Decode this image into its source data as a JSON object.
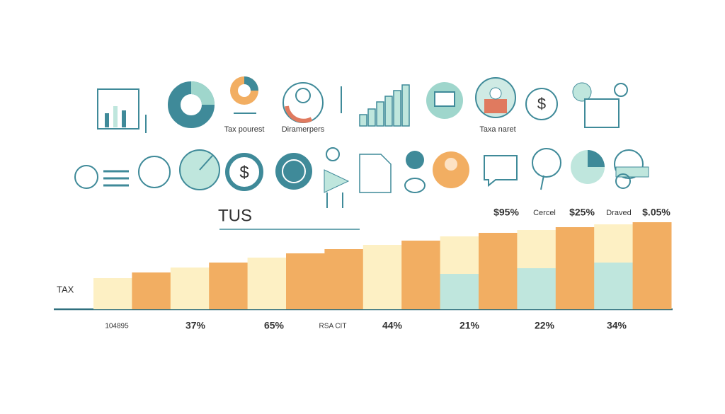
{
  "chart_data": {
    "type": "bar",
    "title": "TUS",
    "y_label": "TAX",
    "annotations": [
      "Tax pourest",
      "Diramerpers",
      "Taxa naret"
    ],
    "labels_above": [
      "$95%",
      "Cercel",
      "$25%",
      "Draved",
      "$.05%"
    ],
    "labels_below": [
      "104895",
      "37%",
      "65%",
      "RSA CIT",
      "44%",
      "21%",
      "22%",
      "34%"
    ],
    "categories": [
      null,
      null,
      null,
      null,
      null,
      null,
      null,
      null,
      null,
      null,
      null,
      null,
      null,
      null,
      null
    ],
    "series": [
      {
        "color": "#bfe6dd",
        "values": [
          null,
          null,
          null,
          null,
          null,
          null,
          null,
          null,
          null,
          50,
          null,
          58,
          null,
          66,
          null
        ]
      },
      {
        "colors": [
          "#fdf0c4",
          "#f2ae62",
          "#fdf0c4",
          "#f2ae62",
          "#fdf0c4",
          "#f2ae62",
          "#f2ae62",
          "#fdf0c4",
          "#f2ae62",
          "#fdf0c4",
          "#f2ae62",
          "#fdf0c4",
          "#f2ae62",
          "#fdf0c4",
          "#f2ae62"
        ],
        "values": [
          44,
          52,
          59,
          66,
          73,
          79,
          85,
          91,
          97,
          53,
          108,
          54,
          116,
          54,
          123
        ]
      }
    ],
    "ylim": [
      0,
      125
    ]
  }
}
